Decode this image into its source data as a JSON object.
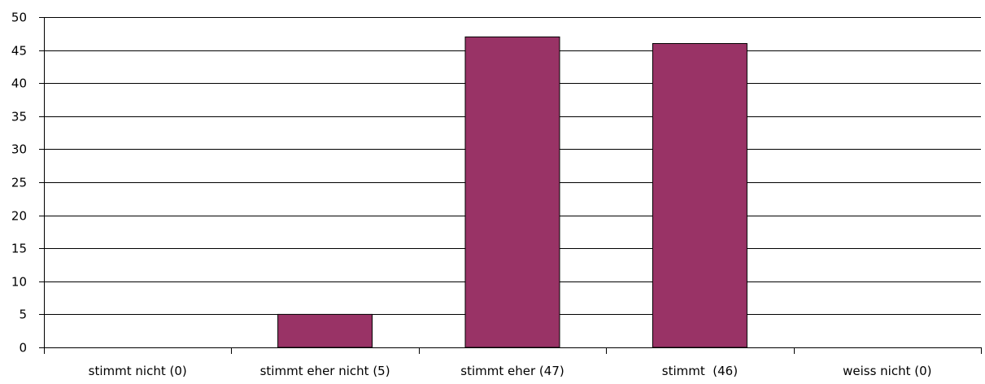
{
  "chart_data": {
    "type": "bar",
    "categories": [
      "stimmt nicht (0)",
      "stimmt eher nicht (5)",
      "stimmt eher (47)",
      "stimmt  (46)",
      "weiss nicht (0)"
    ],
    "values": [
      0,
      5,
      47,
      46,
      0
    ],
    "ylim": [
      0,
      50
    ],
    "yticks": [
      0,
      5,
      10,
      15,
      20,
      25,
      30,
      35,
      40,
      45,
      50
    ],
    "grid": true,
    "bar_color": "#993366",
    "bar_outline_color": "#000000",
    "title": "",
    "xlabel": "",
    "ylabel": ""
  }
}
